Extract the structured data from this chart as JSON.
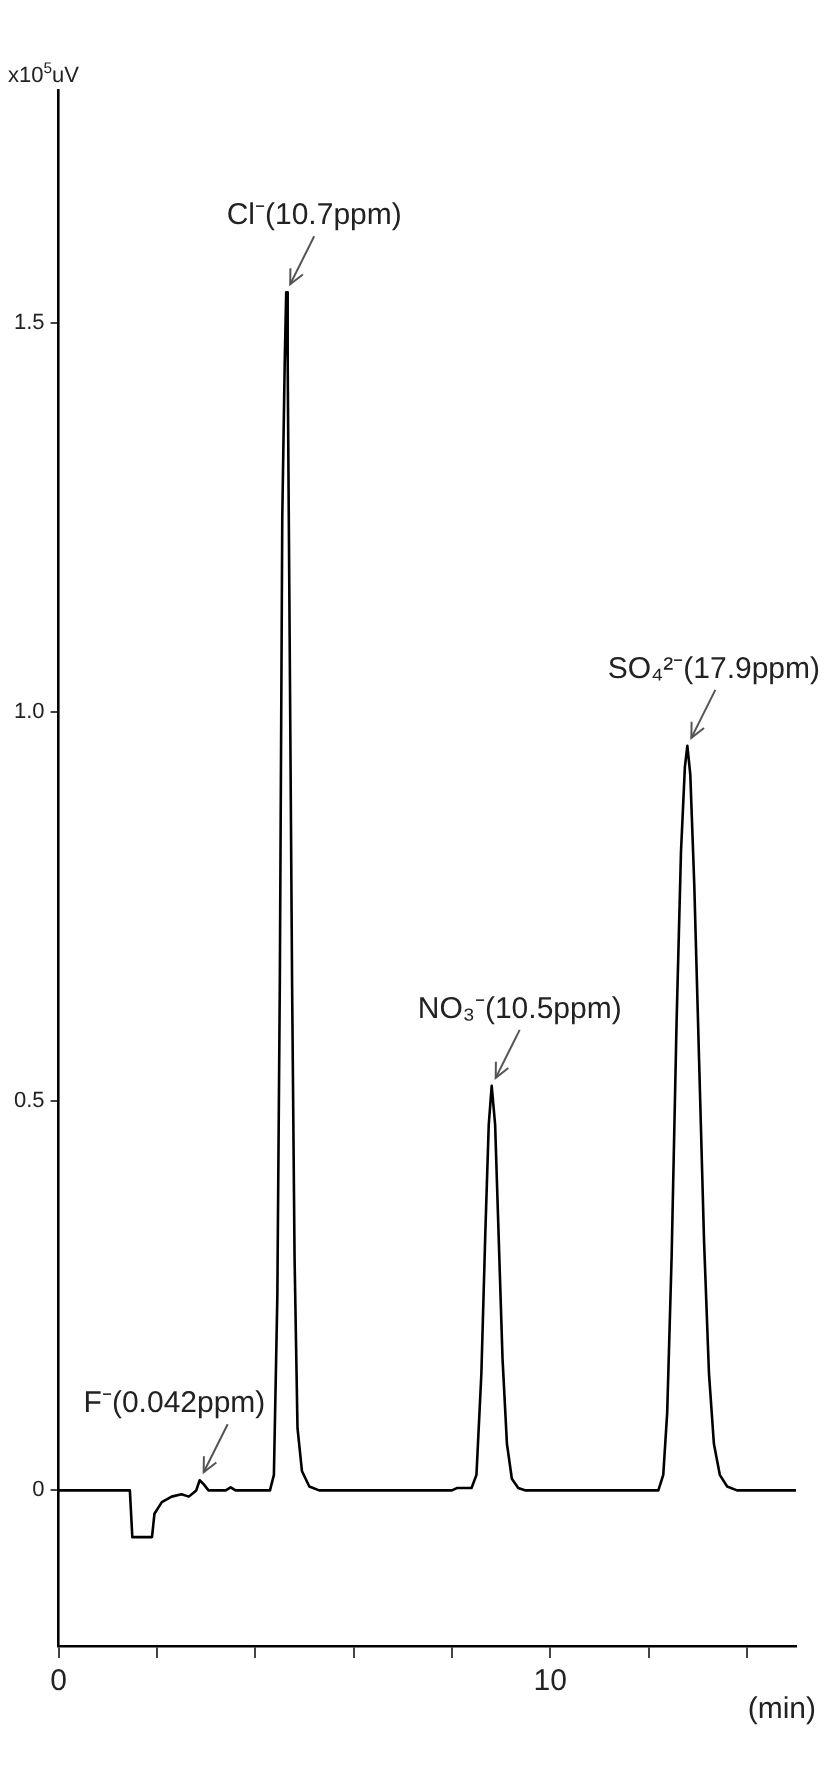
{
  "chart_data": {
    "type": "line",
    "ylabel": "x10$^{5}$uV",
    "xlabel": "(min)",
    "xlim": [
      0,
      15
    ],
    "xticks": [
      {
        "value": 0,
        "label": "0"
      },
      {
        "value": 2,
        "label": null
      },
      {
        "value": 4,
        "label": null
      },
      {
        "value": 6,
        "label": null
      },
      {
        "value": 8,
        "label": null
      },
      {
        "value": 10,
        "label": "10"
      },
      {
        "value": 12,
        "label": null
      },
      {
        "value": 14,
        "label": null
      }
    ],
    "ylim": [
      -0.2,
      1.8
    ],
    "yticks": [
      {
        "value": 0,
        "label": "0"
      },
      {
        "value": 0.5,
        "label": "0.5"
      },
      {
        "value": 1,
        "label": "1.0"
      },
      {
        "value": 1.5,
        "label": "1.5"
      }
    ],
    "grid": false,
    "legend": false,
    "marker": "none",
    "line_style": "solid",
    "series": [
      {
        "color": "#000000",
        "x": [
          0,
          1.45,
          1.5,
          1.9,
          1.95,
          2.1,
          2.3,
          2.5,
          2.65,
          2.8,
          2.87,
          2.95,
          3.05,
          3.4,
          3.5,
          3.6,
          4.3,
          4.38,
          4.45,
          4.5,
          4.55,
          4.6,
          4.63,
          4.66,
          4.7,
          4.75,
          4.8,
          4.86,
          4.95,
          5.1,
          5.3,
          8.0,
          8.1,
          8.4,
          8.5,
          8.6,
          8.68,
          8.75,
          8.81,
          8.88,
          8.95,
          9.03,
          9.12,
          9.22,
          9.35,
          9.5,
          12.2,
          12.3,
          12.38,
          12.47,
          12.57,
          12.66,
          12.74,
          12.79,
          12.85,
          12.93,
          13.03,
          13.13,
          13.23,
          13.33,
          13.45,
          13.6,
          13.8,
          15
        ],
        "values": [
          0,
          0,
          -0.06,
          -0.06,
          -0.03,
          -0.015,
          -0.008,
          -0.005,
          -0.008,
          0,
          0.013,
          0.008,
          0,
          0,
          0.004,
          0,
          0,
          0.02,
          0.25,
          0.65,
          1.25,
          1.45,
          1.54,
          1.45,
          1.1,
          0.65,
          0.3,
          0.08,
          0.025,
          0.005,
          0,
          0,
          0.003,
          0.003,
          0.02,
          0.15,
          0.33,
          0.47,
          0.52,
          0.47,
          0.33,
          0.17,
          0.06,
          0.015,
          0.003,
          0,
          0,
          0.02,
          0.1,
          0.3,
          0.6,
          0.82,
          0.93,
          0.957,
          0.92,
          0.78,
          0.55,
          0.32,
          0.15,
          0.06,
          0.02,
          0.005,
          0,
          0
        ]
      }
    ],
    "annotations": [
      {
        "text": "F⁻(0.042ppm)",
        "x": 2.87,
        "y": 0.013
      },
      {
        "text": "Cl⁻(10.7ppm)",
        "x": 4.63,
        "y": 1.54
      },
      {
        "text": "NO₃⁻(10.5ppm)",
        "x": 8.81,
        "y": 0.52
      },
      {
        "text": "SO₄²⁻(17.9ppm)",
        "x": 12.79,
        "y": 0.957
      }
    ]
  }
}
